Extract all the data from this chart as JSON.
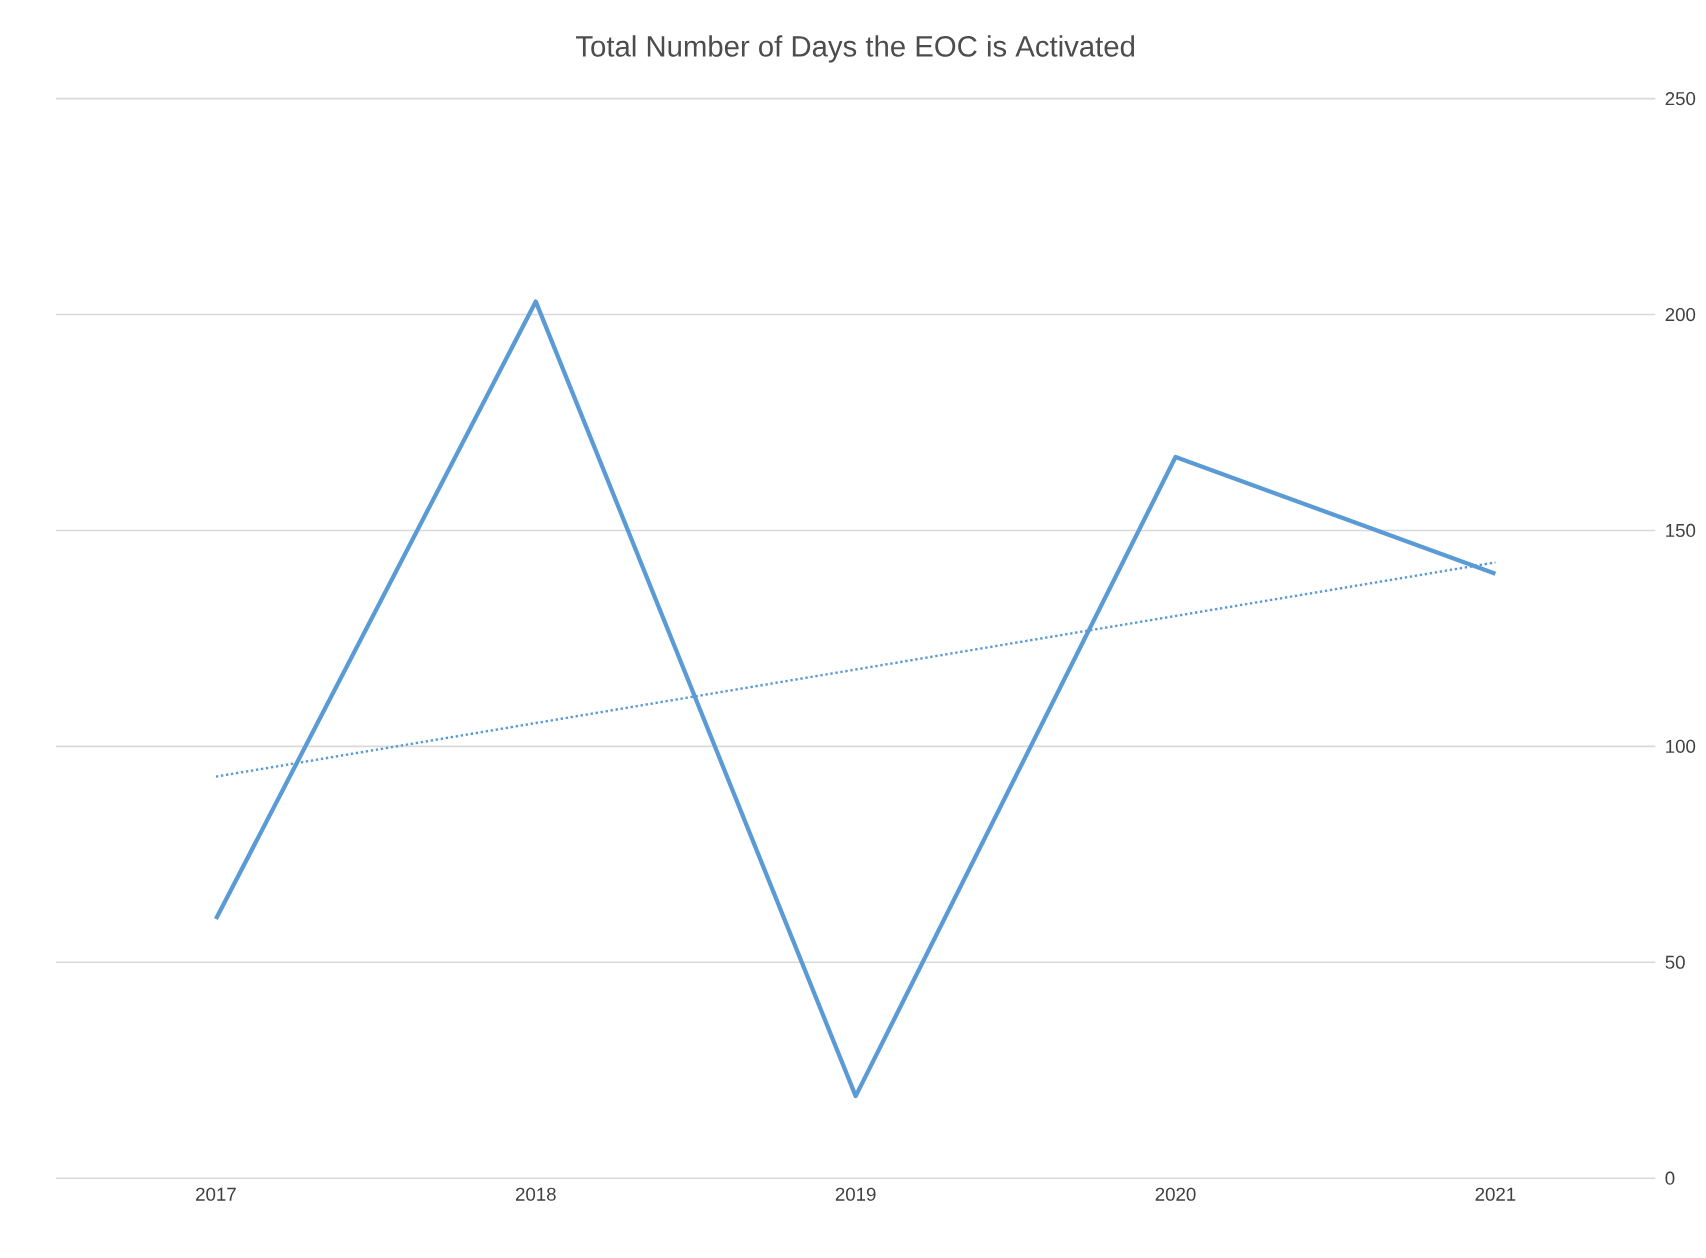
{
  "chart_data": {
    "type": "line",
    "title": "Total Number of Days the EOC is Activated",
    "categories": [
      "2017",
      "2018",
      "2019",
      "2020",
      "2021"
    ],
    "series": [
      {
        "color": "#5b9bd5",
        "values": [
          60,
          203,
          19,
          167,
          140
        ],
        "line_style": "solid"
      },
      {
        "color": "#5b9bd5",
        "values": [
          93,
          105.4,
          117.8,
          130.2,
          142.6
        ],
        "line_style": "dotted"
      }
    ],
    "ylim": [
      0,
      250
    ],
    "yticks": [
      0,
      50,
      100,
      150,
      200,
      250
    ],
    "grid": "y"
  }
}
